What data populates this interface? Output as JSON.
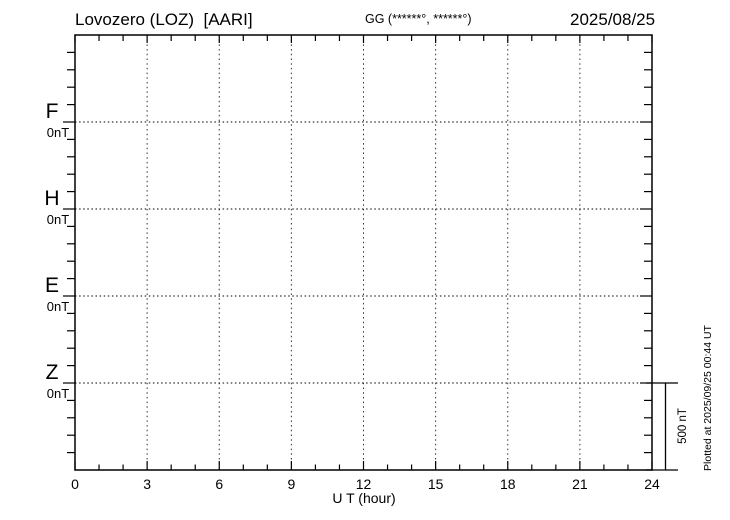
{
  "header": {
    "station_title": "Lovozero (LOZ)  [AARI]",
    "coords_label": "GG (******°, ******°)",
    "date": "2025/08/25"
  },
  "footer": {
    "plotted_at": "Plotted at 2025/09/25 00:44 UT"
  },
  "chart_data": {
    "type": "line",
    "title": "Lovozero (LOZ) [AARI] magnetogram for 2025/08/25",
    "xlabel": "U T (hour)",
    "x_axis": {
      "min": 0,
      "max": 24,
      "ticks": [
        0,
        3,
        6,
        9,
        12,
        15,
        18,
        21,
        24
      ],
      "minor_step_hours": 1,
      "label_step_hours": 3
    },
    "y_axis": {
      "minor_tick_nT": 100,
      "baseline_spacing_nT": 500
    },
    "components": [
      {
        "name": "F",
        "baseline_label": "0nT",
        "color": "#FFA500",
        "values": []
      },
      {
        "name": "H",
        "baseline_label": "0nT",
        "color": "#00DD00",
        "values": []
      },
      {
        "name": "E",
        "baseline_label": "0nT",
        "color": "#0000FF",
        "values": []
      },
      {
        "name": "Z",
        "baseline_label": "0nT",
        "color": "#FF0000",
        "values": []
      }
    ],
    "data_note": "No data traces are drawn for this day; only the dotted zero baselines of F, H, E and Z are visible (empty magnetogram).",
    "scale_bar": {
      "label": "500 nT",
      "value_nT": 500
    },
    "grid": {
      "vertical": "dotted lines every 3 hours",
      "horizontal": "dotted zero baseline for each component"
    },
    "legend_position": "left margin (component letters with 0nT under each)"
  }
}
